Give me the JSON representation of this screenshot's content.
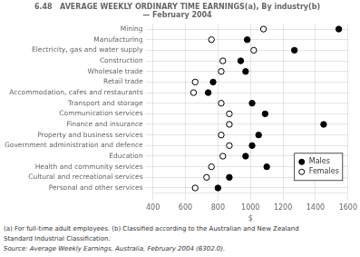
{
  "chart_data": {
    "type": "dot",
    "title": [
      "6.48   AVERAGE WEEKLY ORDINARY TIME EARNINGS(a), By industry(b)",
      "— February 2004"
    ],
    "categories": [
      "Mining",
      "Manufacturing",
      "Electricity, gas and water supply",
      "Construction",
      "Wholesale trade",
      "Retail trade",
      "Accommodation, cafes and restaurants",
      "Transport and storage",
      "Communication services",
      "Finance and insurance",
      "Property and business services",
      "Government administration and defence",
      "Education",
      "Health and community services",
      "Cultural and recreational services",
      "Personal and other services"
    ],
    "series": [
      {
        "name": "Males",
        "color": "black",
        "marker": "circle",
        "values": [
          1543,
          980,
          1270,
          940,
          970,
          770,
          740,
          1010,
          1090,
          1450,
          1050,
          1010,
          970,
          1100,
          870,
          800
        ]
      },
      {
        "name": "Females",
        "color": "white",
        "marker": "circle",
        "values": [
          1080,
          760,
          1020,
          830,
          820,
          660,
          650,
          820,
          870,
          870,
          820,
          870,
          830,
          760,
          730,
          660
        ]
      }
    ],
    "xlabel": "$",
    "xlim": [
      400,
      1600
    ],
    "xticks": [
      400,
      600,
      800,
      1000,
      1200,
      1400,
      1600
    ],
    "grid": true,
    "legend": "lower right",
    "annotations": [
      "(a)  For full-time adult employees.  (b)  Classified according to the Australian and New Zealand",
      "Standard Industrial Classification.",
      "Source:  Average Weekly Earnings, Australia, February 2004 (6302.0)."
    ]
  }
}
